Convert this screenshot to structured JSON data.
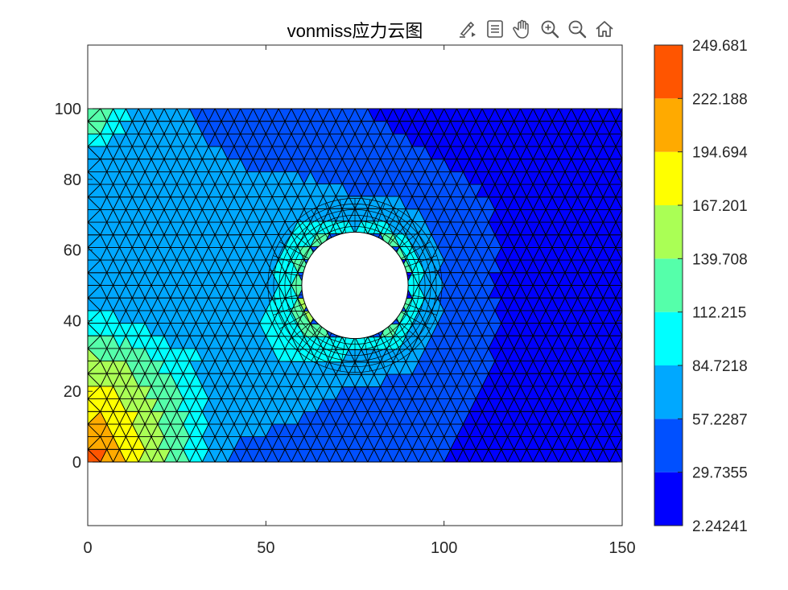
{
  "toolbar": {
    "icons": [
      "brush-icon",
      "datatip-icon",
      "pan-icon",
      "zoom-in-icon",
      "zoom-out-icon",
      "home-icon"
    ]
  },
  "chart_data": {
    "type": "heatmap",
    "title": "vonmiss应力云图",
    "xlabel": "",
    "ylabel": "",
    "xlim": [
      0,
      150
    ],
    "ylim": [
      -18,
      118
    ],
    "x_ticks": [
      "0",
      "50",
      "100",
      "150"
    ],
    "y_ticks": [
      "0",
      "20",
      "40",
      "60",
      "80",
      "100"
    ],
    "grid": false,
    "plate": {
      "x": [
        0,
        150
      ],
      "y": [
        0,
        100
      ]
    },
    "hole": {
      "cx": 75,
      "cy": 50,
      "r": 15
    },
    "colorbar": {
      "tick_labels": [
        "249.681",
        "222.188",
        "194.694",
        "167.201",
        "139.708",
        "112.215",
        "84.7218",
        "57.2287",
        "29.7355",
        "2.24241"
      ],
      "levels": [
        2.24241,
        29.7355,
        57.2287,
        84.7218,
        112.215,
        139.708,
        167.201,
        194.694,
        222.188,
        249.681
      ],
      "colors": [
        "#0000ff",
        "#0050ff",
        "#00a8ff",
        "#00ffff",
        "#55ffaa",
        "#aaff55",
        "#ffff00",
        "#ffaa00",
        "#ff5500"
      ]
    },
    "colormap": "jet-9-levels"
  }
}
